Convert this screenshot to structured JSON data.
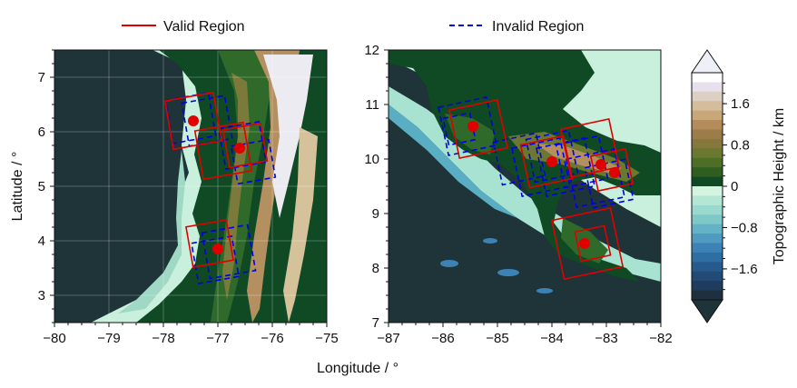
{
  "legend": {
    "valid_label": "Valid Region",
    "invalid_label": "Invalid Region",
    "valid_color": "#e00000",
    "invalid_color": "#0000e6",
    "valid_style": "solid",
    "invalid_style": "dashed",
    "placement": "top"
  },
  "xlabel": "Longitude / °",
  "ylabel": "Latitude / °",
  "colorbar": {
    "label": "Topographic Height / km",
    "ticks": [
      "1.6",
      "0.8",
      "0",
      "−0.8",
      "−1.6"
    ],
    "tick_values": [
      1.6,
      0.8,
      0,
      -0.8,
      -1.6
    ],
    "range": [
      -2.2,
      2.2
    ],
    "colors": [
      "#ffffff",
      "#e8e0ec",
      "#dccfc4",
      "#d4bc9c",
      "#c8a878",
      "#b48c5c",
      "#9c7c48",
      "#84783c",
      "#6a7830",
      "#4e6e26",
      "#2f5e20",
      "#0f4a24",
      "#d2f4e0",
      "#b4e6d6",
      "#9adace",
      "#7ec8c8",
      "#64b2c6",
      "#4e9ac0",
      "#3c82b4",
      "#2e6ea2",
      "#265a8c",
      "#214a74",
      "#1f3c5c",
      "#1e3040"
    ]
  },
  "chart_data": [
    {
      "type": "map",
      "panel": "left",
      "xlim": [
        -80,
        -75
      ],
      "ylim": [
        2.5,
        7.5
      ],
      "xticks": [
        "−80",
        "−79",
        "−78",
        "−77",
        "−76",
        "−75"
      ],
      "xtick_values": [
        -80,
        -79,
        -78,
        -77,
        -76,
        -75
      ],
      "yticks": [
        "3",
        "4",
        "5",
        "6",
        "7"
      ],
      "ytick_values": [
        3,
        4,
        5,
        6,
        7
      ],
      "grid": true,
      "valid_points": [
        {
          "lon": -77.45,
          "lat": 6.2
        },
        {
          "lon": -76.6,
          "lat": 5.7
        },
        {
          "lon": -77.0,
          "lat": 3.85
        }
      ],
      "valid_boxes": [
        {
          "lon": -77.45,
          "lat": 6.2,
          "size": 0.9,
          "rot": -10
        },
        {
          "lon": -76.9,
          "lat": 5.65,
          "size": 0.9,
          "rot": -10
        },
        {
          "lon": -76.5,
          "lat": 5.75,
          "size": 0.7,
          "rot": -10
        },
        {
          "lon": -77.15,
          "lat": 3.95,
          "size": 0.75,
          "rot": -10
        }
      ],
      "invalid_boxes": [
        {
          "lon": -77.5,
          "lat": 6.25,
          "size": 0.8,
          "rot": -10
        },
        {
          "lon": -77.2,
          "lat": 6.2,
          "size": 0.8,
          "rot": -10
        },
        {
          "lon": -76.55,
          "lat": 5.75,
          "size": 0.75,
          "rot": -10
        },
        {
          "lon": -76.35,
          "lat": 5.45,
          "size": 0.7,
          "rot": -10
        },
        {
          "lon": -77.05,
          "lat": 3.65,
          "size": 0.75,
          "rot": -10
        },
        {
          "lon": -76.8,
          "lat": 3.8,
          "size": 0.85,
          "rot": -10
        }
      ]
    },
    {
      "type": "map",
      "panel": "right",
      "xlim": [
        -87,
        -82
      ],
      "ylim": [
        7,
        12
      ],
      "xticks": [
        "−87",
        "−86",
        "−85",
        "−84",
        "−83",
        "−82"
      ],
      "xtick_values": [
        -87,
        -86,
        -85,
        -84,
        -83,
        -82
      ],
      "yticks": [
        "7",
        "8",
        "9",
        "10",
        "11",
        "12"
      ],
      "ytick_values": [
        7,
        8,
        9,
        10,
        11,
        12
      ],
      "grid": false,
      "valid_points": [
        {
          "lon": -85.45,
          "lat": 10.6
        },
        {
          "lon": -84.0,
          "lat": 9.95
        },
        {
          "lon": -83.1,
          "lat": 9.9
        },
        {
          "lon": -82.85,
          "lat": 9.75
        },
        {
          "lon": -83.4,
          "lat": 8.45
        }
      ],
      "valid_boxes": [
        {
          "lon": -85.35,
          "lat": 10.55,
          "size": 0.9,
          "rot": -12
        },
        {
          "lon": -84.1,
          "lat": 9.95,
          "size": 0.8,
          "rot": -12
        },
        {
          "lon": -83.3,
          "lat": 10.2,
          "size": 0.9,
          "rot": -12
        },
        {
          "lon": -82.9,
          "lat": 9.8,
          "size": 0.65,
          "rot": -12
        },
        {
          "lon": -83.35,
          "lat": 8.45,
          "size": 1.1,
          "rot": -12
        },
        {
          "lon": -83.25,
          "lat": 8.45,
          "size": 0.55,
          "rot": -12
        }
      ],
      "invalid_boxes": [
        {
          "lon": -85.55,
          "lat": 10.6,
          "size": 0.9,
          "rot": -12
        },
        {
          "lon": -85.7,
          "lat": 10.55,
          "size": 0.5,
          "rot": -12
        },
        {
          "lon": -84.6,
          "lat": 10.0,
          "size": 0.8,
          "rot": -12
        },
        {
          "lon": -84.2,
          "lat": 9.85,
          "size": 0.9,
          "rot": -12
        },
        {
          "lon": -84.0,
          "lat": 10.05,
          "size": 0.8,
          "rot": -12
        },
        {
          "lon": -83.75,
          "lat": 9.85,
          "size": 0.9,
          "rot": -12
        },
        {
          "lon": -83.45,
          "lat": 9.95,
          "size": 0.8,
          "rot": -12
        },
        {
          "lon": -83.2,
          "lat": 9.65,
          "size": 0.9,
          "rot": -12
        },
        {
          "lon": -82.95,
          "lat": 9.55,
          "size": 0.75,
          "rot": -12
        }
      ]
    }
  ]
}
